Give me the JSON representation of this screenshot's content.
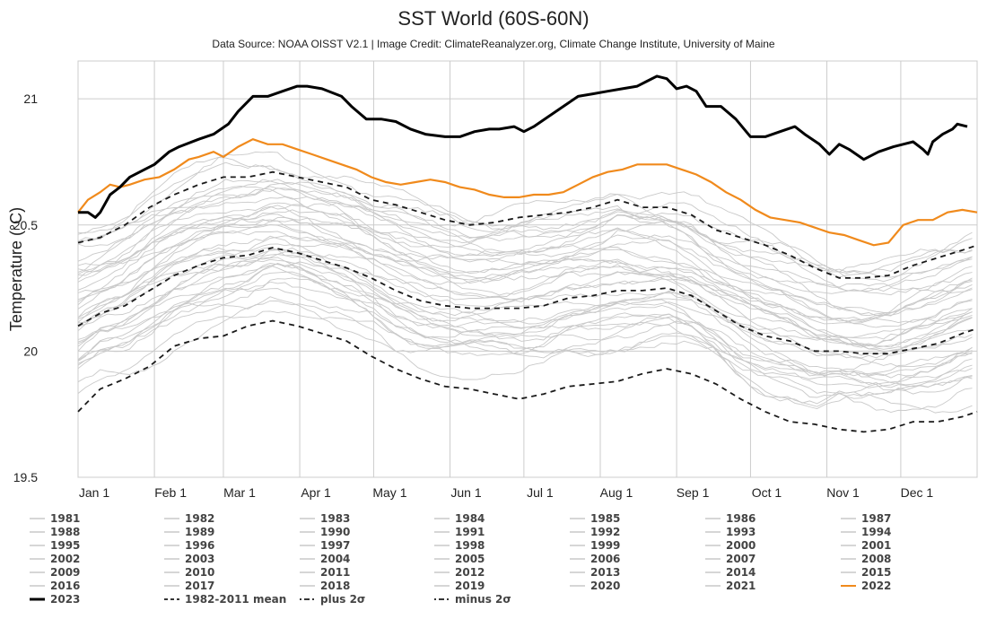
{
  "chart_data": {
    "type": "line",
    "title": "SST World (60S-60N)",
    "subtitle": "Data Source: NOAA OISST V2.1 | Image Credit: ClimateReanalyzer.org, Climate Change Institute, University of Maine",
    "ylabel": "Temperature (°C)",
    "xlabel": "",
    "xlim": [
      1,
      366
    ],
    "ylim": [
      19.5,
      21.15
    ],
    "y_ticks": [
      19.5,
      20,
      20.5,
      21
    ],
    "y_tick_labels": [
      "19.5",
      "20",
      "20.5",
      "21"
    ],
    "x_ticks": [
      {
        "day": 1,
        "label": "Jan 1"
      },
      {
        "day": 32,
        "label": "Feb 1"
      },
      {
        "day": 60,
        "label": "Mar 1"
      },
      {
        "day": 91,
        "label": "Apr 1"
      },
      {
        "day": 121,
        "label": "May 1"
      },
      {
        "day": 152,
        "label": "Jun 1"
      },
      {
        "day": 182,
        "label": "Jul 1"
      },
      {
        "day": 213,
        "label": "Aug 1"
      },
      {
        "day": 244,
        "label": "Sep 1"
      },
      {
        "day": 274,
        "label": "Oct 1"
      },
      {
        "day": 305,
        "label": "Nov 1"
      },
      {
        "day": 335,
        "label": "Dec 1"
      }
    ],
    "grid": true,
    "legend_position": "bottom",
    "legend_columns": 7,
    "colors": {
      "background_years": "#c9c9c9",
      "y2023": "#000000",
      "y2022": "#f08a1c",
      "stats": "#1a1a1a",
      "grid": "#cccccc",
      "legend_gray": "#bdbdbd"
    },
    "legend": [
      "1981",
      "1982",
      "1983",
      "1984",
      "1985",
      "1986",
      "1987",
      "1988",
      "1989",
      "1990",
      "1991",
      "1992",
      "1993",
      "1994",
      "1995",
      "1996",
      "1997",
      "1998",
      "1999",
      "2000",
      "2001",
      "2002",
      "2003",
      "2004",
      "2005",
      "2006",
      "2007",
      "2008",
      "2009",
      "2010",
      "2011",
      "2012",
      "2013",
      "2014",
      "2015",
      "2016",
      "2017",
      "2018",
      "2019",
      "2020",
      "2021",
      "2022",
      "2023",
      "1982-2011 mean",
      "plus 2σ",
      "minus 2σ"
    ],
    "series": [
      {
        "name": "2023",
        "style": "bold",
        "x": [
          1,
          5,
          8,
          10,
          14,
          18,
          22,
          28,
          32,
          38,
          42,
          50,
          56,
          62,
          66,
          72,
          78,
          84,
          90,
          94,
          100,
          108,
          112,
          118,
          124,
          130,
          136,
          142,
          150,
          156,
          162,
          168,
          172,
          178,
          182,
          186,
          192,
          198,
          204,
          210,
          216,
          222,
          228,
          232,
          236,
          240,
          244,
          248,
          252,
          256,
          262,
          268,
          274,
          280,
          286,
          292,
          296,
          302,
          306,
          310,
          314,
          320,
          326,
          332,
          336,
          340,
          344,
          346,
          348,
          352,
          356,
          358,
          362
        ],
        "values": [
          20.55,
          20.55,
          20.53,
          20.55,
          20.62,
          20.65,
          20.69,
          20.72,
          20.74,
          20.79,
          20.81,
          20.84,
          20.86,
          20.9,
          20.95,
          21.01,
          21.01,
          21.03,
          21.05,
          21.05,
          21.04,
          21.01,
          20.97,
          20.92,
          20.92,
          20.91,
          20.88,
          20.86,
          20.85,
          20.85,
          20.87,
          20.88,
          20.88,
          20.89,
          20.87,
          20.89,
          20.93,
          20.97,
          21.01,
          21.02,
          21.03,
          21.04,
          21.05,
          21.07,
          21.09,
          21.08,
          21.04,
          21.05,
          21.03,
          20.97,
          20.97,
          20.92,
          20.85,
          20.85,
          20.87,
          20.89,
          20.86,
          20.82,
          20.78,
          20.82,
          20.8,
          20.76,
          20.79,
          20.81,
          20.82,
          20.83,
          20.8,
          20.78,
          20.83,
          20.86,
          20.88,
          20.9,
          20.89
        ]
      },
      {
        "name": "2022",
        "style": "orange",
        "x": [
          1,
          5,
          10,
          14,
          18,
          22,
          28,
          34,
          40,
          46,
          50,
          56,
          60,
          66,
          72,
          78,
          84,
          90,
          96,
          102,
          108,
          114,
          120,
          126,
          132,
          138,
          144,
          150,
          156,
          162,
          168,
          174,
          180,
          186,
          192,
          198,
          204,
          210,
          216,
          222,
          228,
          234,
          240,
          246,
          252,
          258,
          264,
          270,
          276,
          282,
          288,
          294,
          300,
          306,
          312,
          318,
          324,
          330,
          336,
          342,
          348,
          354,
          360,
          366
        ],
        "values": [
          20.55,
          20.6,
          20.63,
          20.66,
          20.65,
          20.66,
          20.68,
          20.69,
          20.72,
          20.76,
          20.77,
          20.79,
          20.77,
          20.81,
          20.84,
          20.82,
          20.82,
          20.8,
          20.78,
          20.76,
          20.74,
          20.72,
          20.69,
          20.67,
          20.66,
          20.67,
          20.68,
          20.67,
          20.65,
          20.64,
          20.62,
          20.61,
          20.61,
          20.62,
          20.62,
          20.63,
          20.66,
          20.69,
          20.71,
          20.72,
          20.74,
          20.74,
          20.74,
          20.72,
          20.7,
          20.67,
          20.63,
          20.6,
          20.56,
          20.53,
          20.52,
          20.51,
          20.49,
          20.47,
          20.46,
          20.44,
          20.42,
          20.43,
          20.5,
          20.52,
          20.52,
          20.55,
          20.56,
          20.55
        ]
      },
      {
        "name": "plus 2σ",
        "style": "dashed",
        "x": [
          1,
          10,
          20,
          30,
          40,
          50,
          60,
          70,
          80,
          90,
          100,
          110,
          120,
          130,
          140,
          150,
          160,
          170,
          180,
          190,
          200,
          210,
          220,
          230,
          240,
          250,
          260,
          270,
          280,
          290,
          300,
          310,
          320,
          330,
          340,
          350,
          360,
          366
        ],
        "values": [
          20.43,
          20.45,
          20.5,
          20.57,
          20.62,
          20.66,
          20.69,
          20.69,
          20.71,
          20.69,
          20.67,
          20.65,
          20.6,
          20.58,
          20.55,
          20.52,
          20.5,
          20.51,
          20.53,
          20.54,
          20.55,
          20.57,
          20.6,
          20.57,
          20.57,
          20.54,
          20.48,
          20.45,
          20.42,
          20.38,
          20.33,
          20.29,
          20.29,
          20.3,
          20.34,
          20.37,
          20.4,
          20.42
        ]
      },
      {
        "name": "1982-2011 mean",
        "style": "dashed",
        "x": [
          1,
          10,
          20,
          30,
          40,
          50,
          60,
          70,
          80,
          90,
          100,
          110,
          120,
          130,
          140,
          150,
          160,
          170,
          180,
          190,
          200,
          210,
          220,
          230,
          240,
          250,
          260,
          270,
          280,
          290,
          300,
          310,
          320,
          330,
          340,
          350,
          360,
          366
        ],
        "values": [
          20.1,
          20.15,
          20.18,
          20.24,
          20.3,
          20.34,
          20.37,
          20.38,
          20.41,
          20.39,
          20.36,
          20.33,
          20.29,
          20.24,
          20.2,
          20.18,
          20.17,
          20.17,
          20.17,
          20.18,
          20.21,
          20.22,
          20.24,
          20.24,
          20.25,
          20.22,
          20.16,
          20.1,
          20.06,
          20.04,
          20.0,
          20.0,
          19.99,
          19.99,
          20.01,
          20.03,
          20.07,
          20.09
        ]
      },
      {
        "name": "minus 2σ",
        "style": "dashed",
        "x": [
          1,
          10,
          20,
          30,
          40,
          50,
          60,
          70,
          80,
          90,
          100,
          110,
          120,
          130,
          140,
          150,
          160,
          170,
          180,
          190,
          200,
          210,
          220,
          230,
          240,
          250,
          260,
          270,
          280,
          290,
          300,
          310,
          320,
          330,
          340,
          350,
          360,
          366
        ],
        "values": [
          19.76,
          19.85,
          19.89,
          19.94,
          20.02,
          20.05,
          20.06,
          20.1,
          20.12,
          20.1,
          20.07,
          20.04,
          19.98,
          19.93,
          19.89,
          19.86,
          19.85,
          19.83,
          19.81,
          19.83,
          19.86,
          19.87,
          19.88,
          19.91,
          19.93,
          19.91,
          19.87,
          19.81,
          19.76,
          19.72,
          19.71,
          19.69,
          19.68,
          19.69,
          19.72,
          19.72,
          19.74,
          19.76
        ]
      }
    ],
    "annotations": []
  }
}
